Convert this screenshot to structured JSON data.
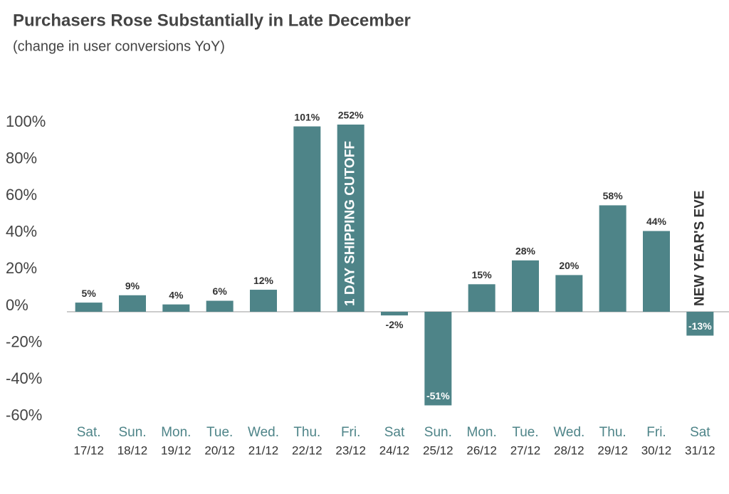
{
  "chart_data": {
    "type": "bar",
    "title": "Purchasers Rose Substantially in Late December",
    "subtitle": "(change in user conversions YoY)",
    "categories": [
      [
        "Sat.",
        "17/12"
      ],
      [
        "Sun.",
        "18/12"
      ],
      [
        "Mon.",
        "19/12"
      ],
      [
        "Tue.",
        "20/12"
      ],
      [
        "Wed.",
        "21/12"
      ],
      [
        "Thu.",
        "22/12"
      ],
      [
        "Fri.",
        "23/12"
      ],
      [
        "Sat",
        "24/12"
      ],
      [
        "Sun.",
        "25/12"
      ],
      [
        "Mon.",
        "26/12"
      ],
      [
        "Tue.",
        "27/12"
      ],
      [
        "Wed.",
        "28/12"
      ],
      [
        "Thu.",
        "29/12"
      ],
      [
        "Fri.",
        "30/12"
      ],
      [
        "Sat",
        "31/12"
      ]
    ],
    "values": [
      5,
      9,
      4,
      6,
      12,
      101,
      252,
      -2,
      -51,
      15,
      28,
      20,
      58,
      44,
      -13
    ],
    "value_labels": [
      "5%",
      "9%",
      "4%",
      "6%",
      "12%",
      "101%",
      "252%",
      "-2%",
      "-51%",
      "15%",
      "28%",
      "20%",
      "58%",
      "44%",
      "-13%"
    ],
    "color": "#4e8488",
    "ylim": [
      -64,
      102
    ],
    "yticks": [
      {
        "value": -60,
        "label": "-60%"
      },
      {
        "value": -40,
        "label": "-40%"
      },
      {
        "value": -20,
        "label": "-20%"
      },
      {
        "value": 0,
        "label": "0%"
      },
      {
        "value": 20,
        "label": "20%"
      },
      {
        "value": 40,
        "label": "40%"
      },
      {
        "value": 60,
        "label": "60%"
      },
      {
        "value": 80,
        "label": "80%"
      },
      {
        "value": 100,
        "label": "100%"
      }
    ],
    "annotations": [
      {
        "text": "1 DAY SHIPPING CUTOFF",
        "category": "23/12"
      },
      {
        "text": "NEW YEAR'S EVE",
        "category": "31/12"
      }
    ]
  }
}
